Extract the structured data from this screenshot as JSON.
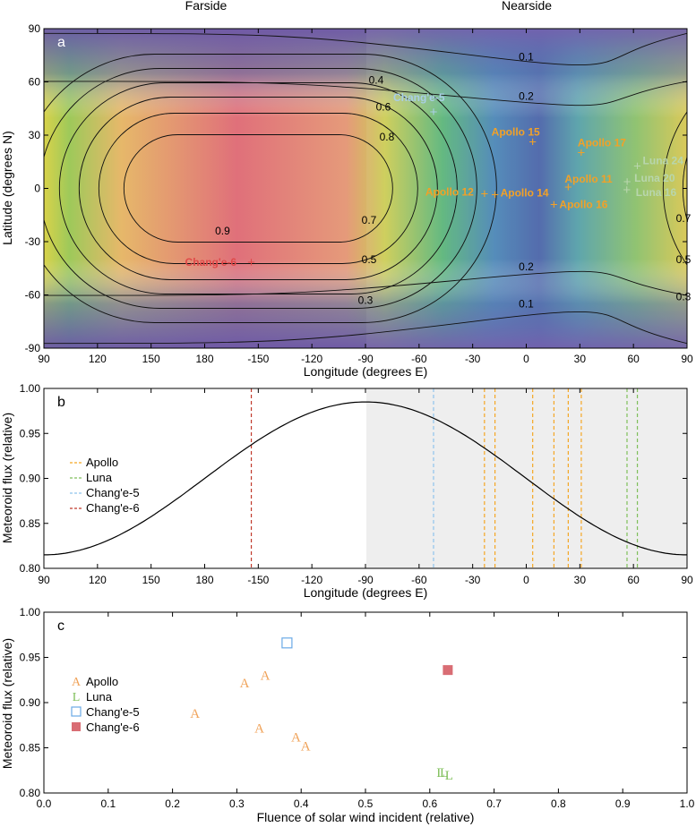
{
  "header": {
    "farside": "Farside",
    "nearside": "Nearside"
  },
  "chart_data": [
    {
      "panel": "a",
      "type": "heatmap",
      "xlabel": "Longitude (degrees E)",
      "ylabel": "Latitude (degrees N)",
      "xticks": [
        "90",
        "120",
        "150",
        "180",
        "-150",
        "-120",
        "-90",
        "-60",
        "-30",
        "0",
        "30",
        "60",
        "90"
      ],
      "yticks": [
        "90",
        "60",
        "30",
        "0",
        "-30",
        "-60",
        "-90"
      ],
      "ylim": [
        -90,
        90
      ],
      "contour_labels": [
        {
          "text": "0.1",
          "lon": 0,
          "lat": 74
        },
        {
          "text": "0.2",
          "lon": 0,
          "lat": 52
        },
        {
          "text": "0.4",
          "lon": -84,
          "lat": 61
        },
        {
          "text": "0.6",
          "lon": -80,
          "lat": 46
        },
        {
          "text": "0.8",
          "lon": -78,
          "lat": 29
        },
        {
          "text": "0.9",
          "lon": -170,
          "lat": -24
        },
        {
          "text": "0.7",
          "lon": -88,
          "lat": -18
        },
        {
          "text": "0.5",
          "lon": -88,
          "lat": -40
        },
        {
          "text": "0.3",
          "lon": -90,
          "lat": -63
        },
        {
          "text": "0.2",
          "lon": 0,
          "lat": -44
        },
        {
          "text": "0.1",
          "lon": 0,
          "lat": -65
        },
        {
          "text": "0.7",
          "lon": 88,
          "lat": -17
        },
        {
          "text": "0.5",
          "lon": 88,
          "lat": -40
        },
        {
          "text": "0.3",
          "lon": 88,
          "lat": -61
        }
      ],
      "sites": [
        {
          "name": "Chang'e-5",
          "lon": -51.9,
          "lat": 43.1,
          "color": "#a9cfe6"
        },
        {
          "name": "Apollo 15",
          "lon": 3.6,
          "lat": 26.1,
          "color": "#f2a127"
        },
        {
          "name": "Apollo 17",
          "lon": 30.8,
          "lat": 20.2,
          "color": "#f2a127"
        },
        {
          "name": "Luna 24",
          "lon": 62.2,
          "lat": 12.7,
          "color": "#b8d6ad"
        },
        {
          "name": "Apollo 11",
          "lon": 23.5,
          "lat": 0.7,
          "color": "#f2a127"
        },
        {
          "name": "Luna 20",
          "lon": 56.5,
          "lat": 3.8,
          "color": "#b8d6ad"
        },
        {
          "name": "Luna 16",
          "lon": 56.3,
          "lat": -0.7,
          "color": "#b8d6ad"
        },
        {
          "name": "Apollo 12",
          "lon": -23.4,
          "lat": -3.0,
          "color": "#f2a127"
        },
        {
          "name": "Apollo 14",
          "lon": -17.5,
          "lat": -3.6,
          "color": "#f2a127"
        },
        {
          "name": "Apollo 16",
          "lon": 15.5,
          "lat": -9.0,
          "color": "#f2a127"
        },
        {
          "name": "Chang'e-6",
          "lon": -153.9,
          "lat": -41.6,
          "color": "#e04848"
        }
      ]
    },
    {
      "panel": "b",
      "type": "line",
      "xlabel": "Longitude (degrees E)",
      "ylabel": "Meteoroid flux (relative)",
      "xticks": [
        "90",
        "120",
        "150",
        "180",
        "-150",
        "-120",
        "-90",
        "-60",
        "-30",
        "0",
        "30",
        "60",
        "90"
      ],
      "yticks": [
        "1.00",
        "0.95",
        "0.90",
        "0.85",
        "0.80"
      ],
      "ylim": [
        0.8,
        1.0
      ],
      "curve": {
        "min": 0.815,
        "max": 0.985,
        "peak_lon": -90
      },
      "vlines": [
        {
          "group": "Chang'e-6",
          "lon": -153.9,
          "color": "#c0392b"
        },
        {
          "group": "Chang'e-5",
          "lon": -51.9,
          "color": "#8ec3ec"
        },
        {
          "group": "Apollo",
          "lon": -23.4,
          "color": "#f5a623"
        },
        {
          "group": "Apollo",
          "lon": -17.5,
          "color": "#f5a623"
        },
        {
          "group": "Apollo",
          "lon": 3.6,
          "color": "#f5a623"
        },
        {
          "group": "Apollo",
          "lon": 15.5,
          "color": "#f5a623"
        },
        {
          "group": "Apollo",
          "lon": 23.5,
          "color": "#f5a623"
        },
        {
          "group": "Apollo",
          "lon": 30.8,
          "color": "#f5a623"
        },
        {
          "group": "Luna",
          "lon": 56.4,
          "color": "#7fbf5a"
        },
        {
          "group": "Luna",
          "lon": 62.2,
          "color": "#7fbf5a"
        }
      ],
      "legend": [
        {
          "label": "Apollo",
          "color": "#f5a623"
        },
        {
          "label": "Luna",
          "color": "#7fbf5a"
        },
        {
          "label": "Chang'e-5",
          "color": "#8ec3ec"
        },
        {
          "label": "Chang'e-6",
          "color": "#c0392b"
        }
      ]
    },
    {
      "panel": "c",
      "type": "scatter",
      "xlabel": "Fluence of solar wind incident (relative)",
      "ylabel": "Meteoroid flux (relative)",
      "xticks": [
        "0.0",
        "0.1",
        "0.2",
        "0.3",
        "0.4",
        "0.5",
        "0.6",
        "0.7",
        "0.8",
        "0.9",
        "1.0"
      ],
      "yticks": [
        "1.00",
        "0.95",
        "0.90",
        "0.85",
        "0.80"
      ],
      "xlim": [
        0,
        1
      ],
      "ylim": [
        0.8,
        1.0
      ],
      "series": [
        {
          "name": "Apollo",
          "marker": "A",
          "color": "#f0a35a",
          "points": [
            [
              0.235,
              0.888
            ],
            [
              0.312,
              0.922
            ],
            [
              0.344,
              0.93
            ],
            [
              0.335,
              0.872
            ],
            [
              0.392,
              0.862
            ],
            [
              0.407,
              0.852
            ]
          ]
        },
        {
          "name": "Luna",
          "marker": "L",
          "color": "#7fbf5a",
          "points": [
            [
              0.617,
              0.823
            ],
            [
              0.622,
              0.823
            ],
            [
              0.63,
              0.82
            ]
          ]
        },
        {
          "name": "Chang'e-5",
          "marker": "square-open",
          "color": "#6aa9e6",
          "points": [
            [
              0.378,
              0.966
            ]
          ]
        },
        {
          "name": "Chang'e-6",
          "marker": "square-filled",
          "color": "#d96d74",
          "points": [
            [
              0.628,
              0.936
            ]
          ]
        }
      ]
    }
  ]
}
